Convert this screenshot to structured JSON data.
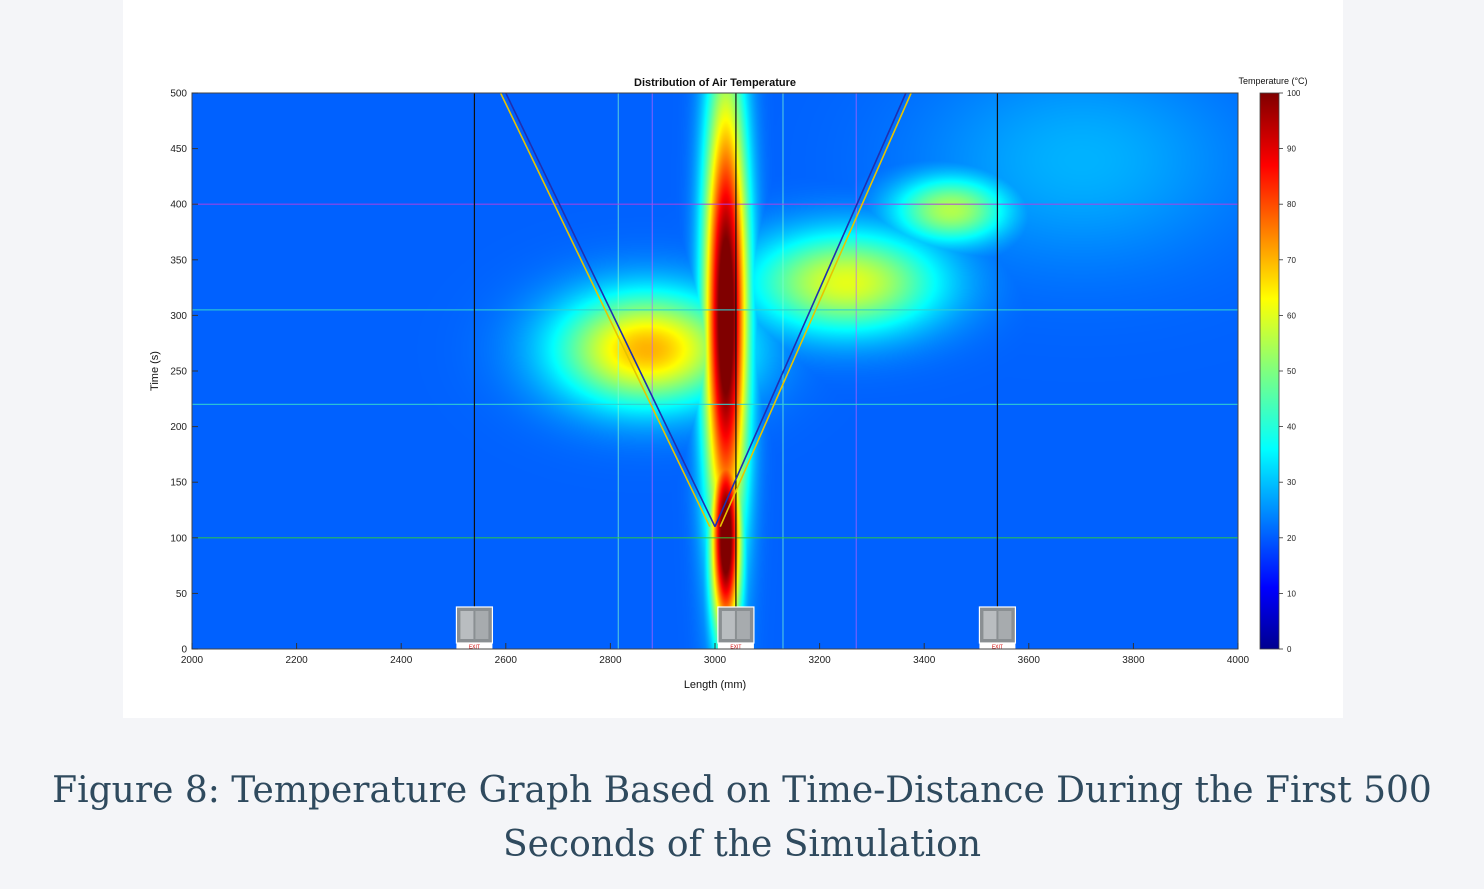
{
  "caption": "Figure 8: Temperature Graph Based on Time-Distance During the First 500 Seconds of the Simulation",
  "chart_data": {
    "type": "heatmap",
    "title": "Distribution of Air Temperature",
    "xlabel": "Length (mm)",
    "ylabel": "Time (s)",
    "xlim": [
      2000,
      4000
    ],
    "ylim": [
      0,
      500
    ],
    "xticks": [
      2000,
      2200,
      2400,
      2600,
      2800,
      3000,
      3200,
      3400,
      3600,
      3800,
      4000
    ],
    "yticks": [
      0,
      50,
      100,
      150,
      200,
      250,
      300,
      350,
      400,
      450,
      500
    ],
    "colorbar": {
      "label": "Temperature (°C)",
      "range": [
        0,
        100
      ],
      "ticks": [
        0,
        10,
        20,
        30,
        40,
        50,
        60,
        70,
        80,
        90,
        100
      ],
      "colormap": "jet"
    },
    "background_temperature": 22,
    "hot_regions": [
      {
        "x": 3020,
        "y": 300,
        "sx": 40,
        "sy": 200,
        "temp": 110
      },
      {
        "x": 3020,
        "y": 100,
        "sx": 28,
        "sy": 90,
        "temp": 110
      },
      {
        "x": 2870,
        "y": 270,
        "sx": 170,
        "sy": 50,
        "temp": 70
      },
      {
        "x": 3250,
        "y": 330,
        "sx": 180,
        "sy": 45,
        "temp": 60
      },
      {
        "x": 3450,
        "y": 395,
        "sx": 110,
        "sy": 30,
        "temp": 55
      },
      {
        "x": 3700,
        "y": 440,
        "sx": 300,
        "sy": 90,
        "temp": 30
      }
    ],
    "exit_positions_x": [
      2540,
      3040,
      3540
    ],
    "exit_label": "EXIT",
    "reference_lines_x": [
      2815,
      2880,
      3130,
      3270
    ],
    "reference_lines_y": [
      100,
      220,
      305,
      400
    ],
    "diagonal_lines": [
      {
        "from": [
          3000,
          110
        ],
        "to": [
          2600,
          500
        ],
        "color": "#1f2fb0"
      },
      {
        "from": [
          3000,
          110
        ],
        "to": [
          3365,
          500
        ],
        "color": "#1f2fb0"
      },
      {
        "from": [
          2990,
          110
        ],
        "to": [
          2590,
          500
        ],
        "color": "#e6c400"
      },
      {
        "from": [
          3010,
          110
        ],
        "to": [
          3375,
          500
        ],
        "color": "#e6c400"
      }
    ]
  }
}
